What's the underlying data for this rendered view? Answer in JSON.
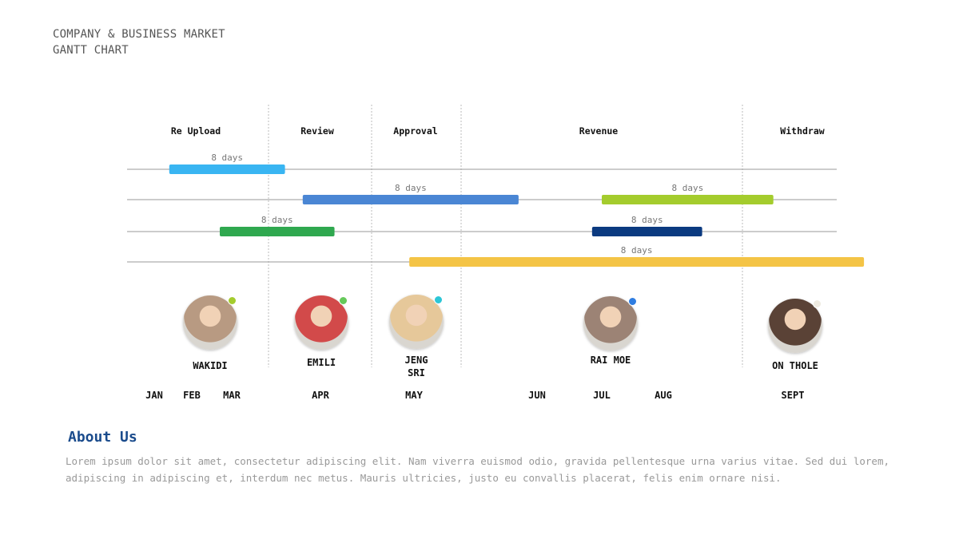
{
  "title": {
    "line1": "COMPANY & BUSINESS MARKET",
    "line2": "GANTT CHART"
  },
  "colors": {
    "text_dark": "#111111",
    "axis_line": "#9a9a9a",
    "divider": "#bbbbbb",
    "heading_blue": "#1a4b8c"
  },
  "chart_data": {
    "type": "gantt",
    "title": "COMPANY & BUSINESS MARKET GANTT CHART",
    "phases": [
      "Re Upload",
      "Review",
      "Approval",
      "Revenue",
      "Withdraw"
    ],
    "months": [
      "JAN",
      "FEB",
      "MAR",
      "APR",
      "MAY",
      "JUN",
      "JUL",
      "AUG",
      "SEPT"
    ],
    "rows": 4,
    "tasks": [
      {
        "row": 0,
        "label": "8 days",
        "start": 0.4,
        "end": 2.6,
        "color": "#39b5f2"
      },
      {
        "row": 1,
        "label": "8 days",
        "start": 2.8,
        "end": 4.85,
        "color": "#4a86d4"
      },
      {
        "row": 1,
        "label": "8 days",
        "start": 6.0,
        "end": 7.85,
        "color": "#a4cc2d"
      },
      {
        "row": 2,
        "label": "8 days",
        "start": 1.7,
        "end": 3.15,
        "color": "#2fa84f"
      },
      {
        "row": 2,
        "label": "8 days",
        "start": 5.85,
        "end": 7.3,
        "color": "#0b3a80"
      },
      {
        "row": 3,
        "label": "8 days",
        "start": 3.95,
        "end": 8.55,
        "color": "#f4c446"
      }
    ]
  },
  "people": [
    {
      "name": "WAKIDI",
      "avatar_color": "#b89a82",
      "status_color": "#a4cc2d"
    },
    {
      "name": "EMILI",
      "avatar_color": "#d24a4a",
      "status_color": "#66c95a"
    },
    {
      "name": "JENG\nSRI",
      "avatar_color": "#e6c89a",
      "status_color": "#2cc6d6"
    },
    {
      "name": "RAI MOE",
      "avatar_color": "#9c8375",
      "status_color": "#2f7de1"
    },
    {
      "name": "ON THOLE",
      "avatar_color": "#5a4236",
      "status_color": "#eeeae0"
    }
  ],
  "about": {
    "heading": "About Us",
    "body": "Lorem ipsum dolor sit amet, consectetur adipiscing elit. Nam viverra euismod odio, gravida pellentesque urna varius vitae. Sed dui lorem, adipiscing in adipiscing et, interdum nec metus. Mauris ultricies, justo eu convallis placerat, felis enim ornare nisi."
  }
}
